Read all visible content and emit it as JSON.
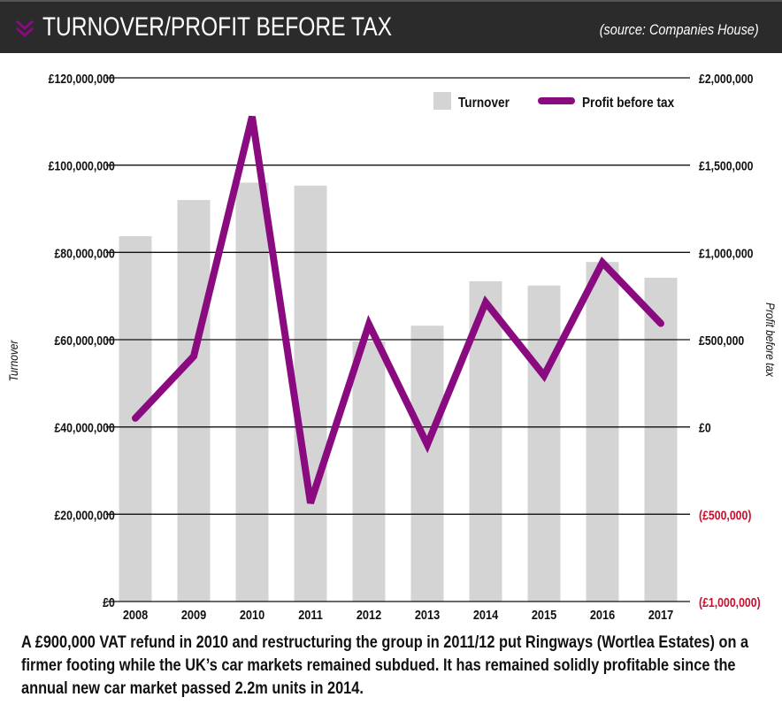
{
  "header": {
    "title": "TURNOVER/PROFIT BEFORE TAX",
    "source": "(source: Companies House)",
    "icon": "double-chevron-down-icon"
  },
  "colors": {
    "bar": "#d4d4d4",
    "line": "#8a0a7f",
    "negative_label": "#c8102e",
    "header_bg": "#2b2b2b"
  },
  "chart_data": {
    "type": "bar+line",
    "categories": [
      "2008",
      "2009",
      "2010",
      "2011",
      "2012",
      "2013",
      "2014",
      "2015",
      "2016",
      "2017"
    ],
    "series": [
      {
        "name": "Turnover",
        "type": "bar",
        "axis": "left",
        "values": [
          83700000,
          92000000,
          96000000,
          95300000,
          59600000,
          63200000,
          73400000,
          72400000,
          77800000,
          74200000
        ]
      },
      {
        "name": "Profit before tax",
        "type": "line",
        "axis": "right",
        "values": [
          50000,
          405000,
          1778000,
          -436000,
          588000,
          -101000,
          714000,
          294000,
          942000,
          593000
        ]
      }
    ],
    "left_axis": {
      "label": "Turnover",
      "range": [
        0,
        120000000
      ],
      "ticks": [
        "£0",
        "£20,000,000",
        "£40,000,000",
        "£60,000,000",
        "£80,000,000",
        "£100,000,000",
        "£120,000,000"
      ]
    },
    "right_axis": {
      "label": "Profit before tax",
      "range": [
        -1000000,
        2000000
      ],
      "ticks": [
        "(£1,000,000)",
        "(£500,000)",
        "£0",
        "£500,000",
        "£1,000,000",
        "£1,500,000",
        "£2,000,000"
      ]
    },
    "grid": true,
    "legend": {
      "placement": "top-right",
      "entries": [
        "Turnover",
        "Profit before tax"
      ]
    }
  },
  "caption": "A £900,000 VAT refund in 2010 and restructuring the group in 2011/12 put Ringways (Wortlea Estates) on a firmer footing while the UK’s car markets remained subdued. It has remained solidly profitable since the annual new car market passed 2.2m units in 2014."
}
